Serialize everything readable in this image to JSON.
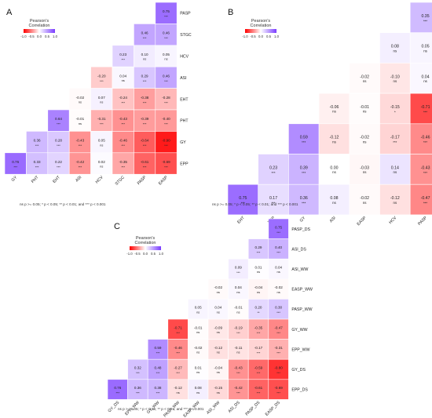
{
  "legend": {
    "title": "Pearson's\nCorrelation",
    "ticks": [
      "-1.0",
      "-0.5",
      "0.0",
      "0.5",
      "1.0"
    ]
  },
  "colors": {
    "negative": "#ff0000",
    "zero": "#ffffff",
    "positive": "#7a3cff"
  },
  "footnote": "ns p >= 0.05; * p < 0.05; ** p < 0.01; and *** p < 0.001",
  "chart_data": [
    {
      "type": "heatmap",
      "panel_label": "A",
      "row_labels": [
        "PASP",
        "STGC",
        "HCV",
        "ASI",
        "EHT",
        "PHT",
        "GY",
        "EPP"
      ],
      "col_labels": [
        "GY",
        "PHT",
        "EHT",
        "ASI",
        "HCV",
        "STGC",
        "PASP",
        "EASP"
      ],
      "values": [
        [
          null,
          null,
          null,
          null,
          null,
          null,
          null,
          0.75
        ],
        [
          null,
          null,
          null,
          null,
          null,
          null,
          0.46,
          0.46
        ],
        [
          null,
          null,
          null,
          null,
          null,
          0.23,
          0.1,
          0.05
        ],
        [
          null,
          null,
          null,
          null,
          -0.2,
          0.04,
          0.29,
          0.46
        ],
        [
          null,
          null,
          null,
          -0.02,
          0.07,
          -0.24,
          -0.38,
          -0.28
        ],
        [
          null,
          null,
          0.64,
          -0.01,
          -0.31,
          -0.43,
          -0.39,
          -0.4
        ],
        [
          null,
          0.36,
          0.28,
          -0.43,
          0.05,
          -0.46,
          -0.64,
          -0.9
        ],
        [
          0.76,
          0.33,
          0.22,
          -0.42,
          0.02,
          -0.35,
          -0.61,
          -0.69
        ]
      ],
      "significance": [
        [
          null,
          null,
          null,
          null,
          null,
          null,
          null,
          "***"
        ],
        [
          null,
          null,
          null,
          null,
          null,
          null,
          "***",
          "***"
        ],
        [
          null,
          null,
          null,
          null,
          null,
          "***",
          "ns",
          "ns"
        ],
        [
          null,
          null,
          null,
          null,
          "***",
          "ns",
          "***",
          "***"
        ],
        [
          null,
          null,
          null,
          "ns",
          "ns",
          "***",
          "***",
          "***"
        ],
        [
          null,
          null,
          "***",
          "ns",
          "***",
          "***",
          "***",
          "***"
        ],
        [
          null,
          "***",
          "***",
          "***",
          "ns",
          "***",
          "***",
          "***"
        ],
        [
          "***",
          "***",
          "***",
          "***",
          "ns",
          "***",
          "***",
          "***"
        ]
      ]
    },
    {
      "type": "heatmap",
      "panel_label": "B",
      "row_labels": [
        "HCV",
        "EASP",
        "ASI",
        "GY",
        "EPP",
        "EHT",
        "PHT"
      ],
      "col_labels": [
        "EHT",
        "EPP",
        "GY",
        "ASI",
        "EASP",
        "HCV",
        "PASP"
      ],
      "values": [
        [
          null,
          null,
          null,
          null,
          null,
          null,
          0.35
        ],
        [
          null,
          null,
          null,
          null,
          null,
          0.08,
          0.05
        ],
        [
          null,
          null,
          null,
          null,
          -0.02,
          -0.1,
          0.04
        ],
        [
          null,
          null,
          null,
          -0.06,
          -0.01,
          -0.15,
          -0.71
        ],
        [
          null,
          null,
          0.59,
          -0.12,
          -0.02,
          -0.17,
          -0.46
        ],
        [
          null,
          0.23,
          0.39,
          0.0,
          -0.03,
          0.14,
          -0.43
        ],
        [
          0.75,
          0.17,
          0.36,
          0.08,
          -0.02,
          -0.12,
          -0.47
        ]
      ],
      "significance": [
        [
          null,
          null,
          null,
          null,
          null,
          null,
          "***"
        ],
        [
          null,
          null,
          null,
          null,
          null,
          "ns",
          "ns"
        ],
        [
          null,
          null,
          null,
          null,
          "ns",
          "ns",
          "ns"
        ],
        [
          null,
          null,
          null,
          "ns",
          "ns",
          "*",
          "***"
        ],
        [
          null,
          null,
          "***",
          "ns",
          "ns",
          "***",
          "***"
        ],
        [
          null,
          "***",
          "***",
          "ns",
          "ns",
          "ns",
          "***"
        ],
        [
          "***",
          "***",
          "***",
          "ns",
          "ns",
          "ns",
          "***"
        ]
      ]
    },
    {
      "type": "heatmap",
      "panel_label": "C",
      "row_labels": [
        "PASP_DS",
        "ASI_DS",
        "ASI_WW",
        "EASP_WW",
        "PASP_WW",
        "GY_WW",
        "EPP_WW",
        "GY_DS",
        "EPP_DS"
      ],
      "col_labels": [
        "GY_DS",
        "EPP_WW",
        "GY_WW",
        "PASP_WW",
        "EASP_WW",
        "ASI_WW",
        "ASI_DS",
        "PASP_DS",
        "EASP_DS"
      ],
      "values": [
        [
          null,
          null,
          null,
          null,
          null,
          null,
          null,
          null,
          0.75
        ],
        [
          null,
          null,
          null,
          null,
          null,
          null,
          null,
          0.29,
          0.4
        ],
        [
          null,
          null,
          null,
          null,
          null,
          null,
          0.09,
          0.01,
          0.04
        ],
        [
          null,
          null,
          null,
          null,
          null,
          -0.02,
          0.04,
          -0.04,
          -0.02
        ],
        [
          null,
          null,
          null,
          null,
          0.05,
          0.04,
          -0.01,
          0.2,
          0.3
        ],
        [
          null,
          null,
          null,
          -0.71,
          -0.01,
          -0.09,
          -0.19,
          -0.35,
          -0.47
        ],
        [
          null,
          null,
          0.59,
          -0.46,
          -0.02,
          -0.12,
          -0.11,
          -0.17,
          -0.31
        ],
        [
          null,
          0.32,
          0.48,
          -0.27,
          0.01,
          -0.04,
          -0.43,
          -0.59,
          -0.8
        ],
        [
          0.76,
          0.36,
          0.38,
          -0.12,
          0.08,
          -0.15,
          -0.42,
          -0.61,
          -0.69
        ]
      ],
      "significance": [
        [
          null,
          null,
          null,
          null,
          null,
          null,
          null,
          null,
          "***"
        ],
        [
          null,
          null,
          null,
          null,
          null,
          null,
          null,
          "***",
          "***"
        ],
        [
          null,
          null,
          null,
          null,
          null,
          null,
          "***",
          "ns",
          "ns"
        ],
        [
          null,
          null,
          null,
          null,
          null,
          "ns",
          "ns",
          "ns",
          "ns"
        ],
        [
          null,
          null,
          null,
          null,
          "ns",
          "ns",
          "ns",
          "**",
          "***"
        ],
        [
          null,
          null,
          null,
          "***",
          "ns",
          "ns",
          "***",
          "***",
          "***"
        ],
        [
          null,
          null,
          "***",
          "***",
          "ns",
          "ns",
          "ns",
          "***",
          "***"
        ],
        [
          null,
          "***",
          "***",
          "***",
          "ns",
          "ns",
          "***",
          "***",
          "***"
        ],
        [
          "***",
          "***",
          "***",
          "ns",
          "ns",
          "ns",
          "***",
          "***",
          "***"
        ]
      ]
    }
  ]
}
